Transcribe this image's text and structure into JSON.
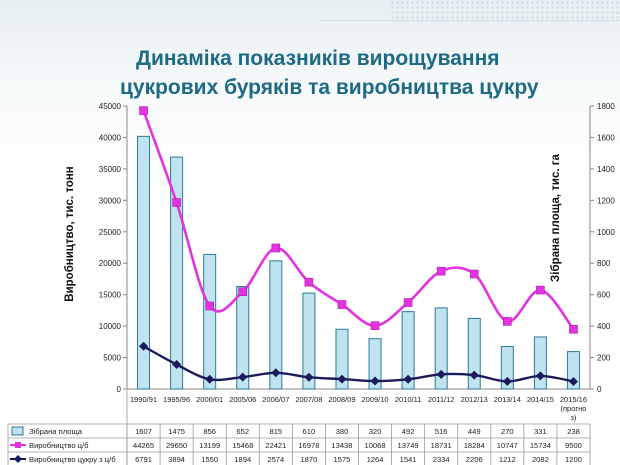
{
  "slide": {
    "title_line1": "Динаміка показників вирощування",
    "title_line2": "цукрових буряків та виробництва цукру"
  },
  "colors": {
    "title": "#1e6a84",
    "bar_fill": "#bfe3ef",
    "bar_stroke": "#2b7a9a",
    "magenta": "#e333e0",
    "navy": "#1a1a5c"
  },
  "chart_data": {
    "type": "bar",
    "categories": [
      "1990/91",
      "1995/96",
      "2000/01",
      "2005/06",
      "2006/07",
      "2007/08",
      "2008/09",
      "2009/10",
      "2010/11",
      "2011/12",
      "2012/13",
      "2013/14",
      "2014/15",
      "2015/16 (прогноз)"
    ],
    "category_labels": [
      [
        "1990/91"
      ],
      [
        "1995/96"
      ],
      [
        "2000/01"
      ],
      [
        "2005/06"
      ],
      [
        "2006/07"
      ],
      [
        "2007/08"
      ],
      [
        "2008/09"
      ],
      [
        "2009/10"
      ],
      [
        "2010/11"
      ],
      [
        "2011/12"
      ],
      [
        "2012/13"
      ],
      [
        "2013/14"
      ],
      [
        "2014/15"
      ],
      [
        "2015/16",
        "(прогно",
        "з)"
      ]
    ],
    "ylabel_left": "Виробництво, тис. тонн",
    "ylabel_right": "Зібрана площа, тис. га",
    "ylim_left": [
      0,
      45000
    ],
    "ylim_right": [
      0,
      1800
    ],
    "yticks_left": [
      "0",
      "5000",
      "10000",
      "15000",
      "20000",
      "25000",
      "30000",
      "35000",
      "40000",
      "45000"
    ],
    "yticks_right": [
      "0",
      "200",
      "400",
      "600",
      "800",
      "1000",
      "1200",
      "1400",
      "1600",
      "1800"
    ],
    "series": [
      {
        "name": "Зібрана площа",
        "kind": "bar",
        "axis": "right",
        "values": [
          1607,
          1475,
          856,
          652,
          815,
          610,
          380,
          320,
          492,
          516,
          449,
          270,
          331,
          238
        ]
      },
      {
        "name": "Виробництво ц/б",
        "kind": "line-smooth",
        "axis": "left",
        "values": [
          44265,
          29650,
          13199,
          15468,
          22421,
          16978,
          13438,
          10068,
          13749,
          18731,
          18284,
          10747,
          15734,
          9500
        ]
      },
      {
        "name": "Виробництво цукру з ц/б",
        "kind": "line-smooth",
        "axis": "left",
        "values": [
          6791,
          3894,
          1550,
          1894,
          2574,
          1870,
          1575,
          1264,
          1541,
          2334,
          2206,
          1212,
          2082,
          1200
        ]
      }
    ],
    "data_table": [
      {
        "label": "Зібрана площа",
        "cells": [
          "1607",
          "1475",
          "856",
          "652",
          "815",
          "610",
          "380",
          "320",
          "492",
          "516",
          "449",
          "270",
          "331",
          "238"
        ]
      },
      {
        "label": "Виробництво ц/б",
        "cells": [
          "44265",
          "29650",
          "13199",
          "15468",
          "22421",
          "16978",
          "13438",
          "10068",
          "13749",
          "18731",
          "18284",
          "10747",
          "15734",
          "9500"
        ]
      },
      {
        "label": "Виробництво цукру з ц/б",
        "cells": [
          "6791",
          "3894",
          "1550",
          "1894",
          "2574",
          "1870",
          "1575",
          "1264",
          "1541",
          "2334",
          "2206",
          "1212",
          "2082",
          "1200"
        ]
      }
    ]
  }
}
